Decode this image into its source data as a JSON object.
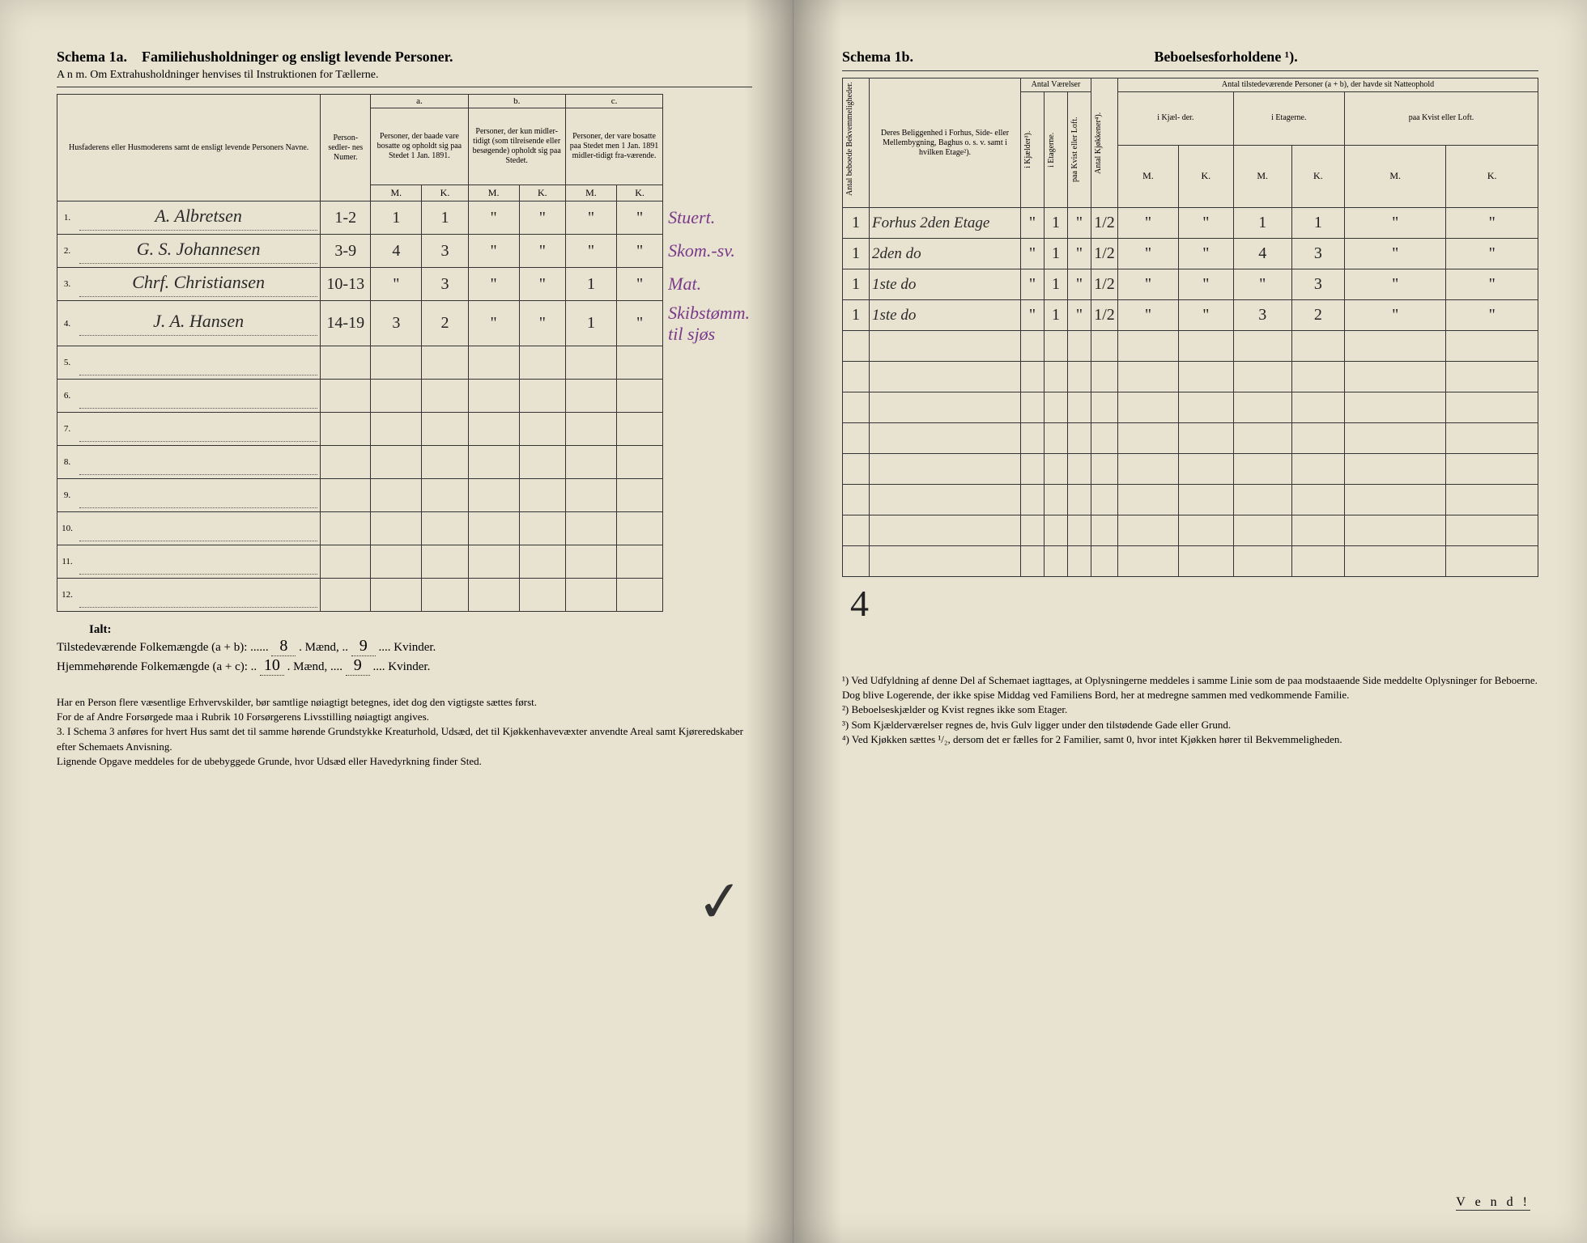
{
  "left": {
    "schema_label": "Schema 1a.",
    "title": "Familiehusholdninger og ensligt levende Personer.",
    "subtitle": "A n m. Om Extrahusholdninger henvises til Instruktionen for Tællerne.",
    "columns": {
      "names_header": "Husfaderens eller Husmoderens samt de ensligt levende Personers Navne.",
      "person_numer": "Person-\nsedler-\nnes\nNumer.",
      "a_label": "a.",
      "a_text": "Personer, der baade vare bosatte og opholdt sig paa Stedet 1 Jan. 1891.",
      "b_label": "b.",
      "b_text": "Personer, der kun midler-tidigt (som tilreisende eller besøgende) opholdt sig paa Stedet.",
      "c_label": "c.",
      "c_text": "Personer, der vare bosatte paa Stedet men 1 Jan. 1891 midler-tidigt fra-værende.",
      "M": "M.",
      "K": "K."
    },
    "rows": [
      {
        "n": "1.",
        "name": "A. Albretsen",
        "numer": "1-2",
        "aM": "1",
        "aK": "1",
        "bM": "\"",
        "bK": "\"",
        "cM": "\"",
        "cK": "\"",
        "note": "Stuert."
      },
      {
        "n": "2.",
        "name": "G. S. Johannesen",
        "numer": "3-9",
        "aM": "4",
        "aK": "3",
        "bM": "\"",
        "bK": "\"",
        "cM": "\"",
        "cK": "\"",
        "note": "Skom.-sv."
      },
      {
        "n": "3.",
        "name": "Chrf. Christiansen",
        "numer": "10-13",
        "aM": "\"",
        "aK": "3",
        "bM": "\"",
        "bK": "\"",
        "cM": "1",
        "cK": "\"",
        "note": "Mat."
      },
      {
        "n": "4.",
        "name": "J. A. Hansen",
        "numer": "14-19",
        "aM": "3",
        "aK": "2",
        "bM": "\"",
        "bK": "\"",
        "cM": "1",
        "cK": "\"",
        "note": "Skibstømm. til sjøs"
      },
      {
        "n": "5.",
        "name": "",
        "numer": "",
        "aM": "",
        "aK": "",
        "bM": "",
        "bK": "",
        "cM": "",
        "cK": "",
        "note": ""
      },
      {
        "n": "6.",
        "name": "",
        "numer": "",
        "aM": "",
        "aK": "",
        "bM": "",
        "bK": "",
        "cM": "",
        "cK": "",
        "note": ""
      },
      {
        "n": "7.",
        "name": "",
        "numer": "",
        "aM": "",
        "aK": "",
        "bM": "",
        "bK": "",
        "cM": "",
        "cK": "",
        "note": ""
      },
      {
        "n": "8.",
        "name": "",
        "numer": "",
        "aM": "",
        "aK": "",
        "bM": "",
        "bK": "",
        "cM": "",
        "cK": "",
        "note": ""
      },
      {
        "n": "9.",
        "name": "",
        "numer": "",
        "aM": "",
        "aK": "",
        "bM": "",
        "bK": "",
        "cM": "",
        "cK": "",
        "note": ""
      },
      {
        "n": "10.",
        "name": "",
        "numer": "",
        "aM": "",
        "aK": "",
        "bM": "",
        "bK": "",
        "cM": "",
        "cK": "",
        "note": ""
      },
      {
        "n": "11.",
        "name": "",
        "numer": "",
        "aM": "",
        "aK": "",
        "bM": "",
        "bK": "",
        "cM": "",
        "cK": "",
        "note": ""
      },
      {
        "n": "12.",
        "name": "",
        "numer": "",
        "aM": "",
        "aK": "",
        "bM": "",
        "bK": "",
        "cM": "",
        "cK": "",
        "note": ""
      }
    ],
    "ialt": "Ialt:",
    "totals_line1_a": "Tilstedeværende Folkemængde (a + b): ......",
    "totals_line1_m": "8",
    "totals_line1_mid": ". Mænd, ..",
    "totals_line1_k": "9",
    "totals_line1_end": ".... Kvinder.",
    "totals_line2_a": "Hjemmehørende Folkemængde (a + c): ..",
    "totals_line2_m": "10",
    "totals_line2_mid": ". Mænd, ....",
    "totals_line2_k": "9",
    "totals_line2_end": ".... Kvinder.",
    "footnotes": "Har en Person flere væsentlige Erhvervskilder, bør samtlige nøiagtigt betegnes, idet dog den vigtigste sættes først.\n    For de af Andre Forsørgede maa i Rubrik 10 Forsørgerens Livsstilling nøiagtigt angives.\n3. I Schema 3 anføres for hvert Hus samt det til samme hørende Grundstykke Kreaturhold, Udsæd, det til Kjøkkenhavevæxter anvendte Areal samt Kjøreredskaber efter Schemaets Anvisning.\n    Lignende Opgave meddeles for de ubebyggede Grunde, hvor Udsæd eller Havedyrkning finder Sted."
  },
  "right": {
    "schema_label": "Schema 1b.",
    "title": "Beboelsesforholdene ¹).",
    "columns": {
      "antal_bekv": "Antal beboede\nBekvemmeligheder.",
      "beliggenhed": "Deres Beliggenhed i Forhus, Side- eller Mellembygning, Baghus o. s. v. samt i hvilken Etage²).",
      "antal_vaer": "Antal\nVærelser",
      "i_kjaelder": "i Kjælder³).",
      "i_etagerne": "i Etagerne.",
      "paa_kvist": "paa Kvist eller\nLoft.",
      "antal_kjok": "Antal Kjøkkener⁴).",
      "tilstede_header": "Antal tilstedeværende Personer (a + b), der havde sit Natteophold",
      "i_kjael": "i Kjæl-\nder.",
      "i_etag": "i\nEtagerne.",
      "paa_kvist2": "paa\nKvist\neller\nLoft.",
      "M": "M.",
      "K": "K."
    },
    "rows": [
      {
        "bekv": "1",
        "beligg": "Forhus 2den Etage",
        "kj": "\"",
        "et": "1",
        "kv": "\"",
        "kjok": "1/2",
        "kjM": "\"",
        "kjK": "\"",
        "etM": "1",
        "etK": "1",
        "kvM": "\"",
        "kvK": "\""
      },
      {
        "bekv": "1",
        "beligg": "2den do",
        "kj": "\"",
        "et": "1",
        "kv": "\"",
        "kjok": "1/2",
        "kjM": "\"",
        "kjK": "\"",
        "etM": "4",
        "etK": "3",
        "kvM": "\"",
        "kvK": "\""
      },
      {
        "bekv": "1",
        "beligg": "1ste do",
        "kj": "\"",
        "et": "1",
        "kv": "\"",
        "kjok": "1/2",
        "kjM": "\"",
        "kjK": "\"",
        "etM": "\"",
        "etK": "3",
        "kvM": "\"",
        "kvK": "\""
      },
      {
        "bekv": "1",
        "beligg": "1ste do",
        "kj": "\"",
        "et": "1",
        "kv": "\"",
        "kjok": "1/2",
        "kjM": "\"",
        "kjK": "\"",
        "etM": "3",
        "etK": "2",
        "kvM": "\"",
        "kvK": "\""
      },
      {
        "bekv": "",
        "beligg": "",
        "kj": "",
        "et": "",
        "kv": "",
        "kjok": "",
        "kjM": "",
        "kjK": "",
        "etM": "",
        "etK": "",
        "kvM": "",
        "kvK": ""
      },
      {
        "bekv": "",
        "beligg": "",
        "kj": "",
        "et": "",
        "kv": "",
        "kjok": "",
        "kjM": "",
        "kjK": "",
        "etM": "",
        "etK": "",
        "kvM": "",
        "kvK": ""
      },
      {
        "bekv": "",
        "beligg": "",
        "kj": "",
        "et": "",
        "kv": "",
        "kjok": "",
        "kjM": "",
        "kjK": "",
        "etM": "",
        "etK": "",
        "kvM": "",
        "kvK": ""
      },
      {
        "bekv": "",
        "beligg": "",
        "kj": "",
        "et": "",
        "kv": "",
        "kjok": "",
        "kjM": "",
        "kjK": "",
        "etM": "",
        "etK": "",
        "kvM": "",
        "kvK": ""
      },
      {
        "bekv": "",
        "beligg": "",
        "kj": "",
        "et": "",
        "kv": "",
        "kjok": "",
        "kjM": "",
        "kjK": "",
        "etM": "",
        "etK": "",
        "kvM": "",
        "kvK": ""
      },
      {
        "bekv": "",
        "beligg": "",
        "kj": "",
        "et": "",
        "kv": "",
        "kjok": "",
        "kjM": "",
        "kjK": "",
        "etM": "",
        "etK": "",
        "kvM": "",
        "kvK": ""
      },
      {
        "bekv": "",
        "beligg": "",
        "kj": "",
        "et": "",
        "kv": "",
        "kjok": "",
        "kjM": "",
        "kjK": "",
        "etM": "",
        "etK": "",
        "kvM": "",
        "kvK": ""
      },
      {
        "bekv": "",
        "beligg": "",
        "kj": "",
        "et": "",
        "kv": "",
        "kjok": "",
        "kjM": "",
        "kjK": "",
        "etM": "",
        "etK": "",
        "kvM": "",
        "kvK": ""
      }
    ],
    "total4": "4",
    "footnotes": "¹) Ved Udfyldning af denne Del af Schemaet iagttages, at Oplysningerne meddeles i samme Linie som de paa modstaaende Side meddelte Oplysninger for Beboerne. Dog blive Logerende, der ikke spise Middag ved Familiens Bord, her at medregne sammen med vedkommende Familie.\n²) Beboelseskjælder og Kvist regnes ikke som Etager.\n³) Som Kjælderværelser regnes de, hvis Gulv ligger under den tilstødende Gade eller Grund.\n⁴) Ved Kjøkken sættes ¹/₂, dersom det er fælles for 2 Familier, samt 0, hvor intet Kjøkken hører til Bekvemmeligheden.",
    "vend": "V e n d !"
  },
  "colors": {
    "paper": "#e8e2d0",
    "ink": "#2a2a2a",
    "purple": "#7a3a8a"
  }
}
